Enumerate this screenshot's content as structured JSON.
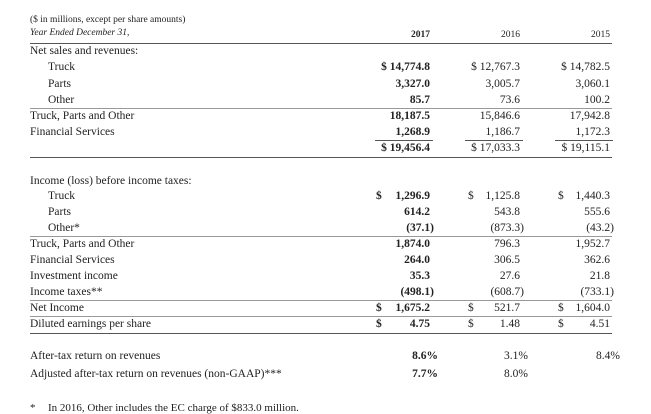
{
  "header": {
    "units_note": "($ in millions, except per share amounts)",
    "period_label": "Year Ended December 31,",
    "years": [
      "2017",
      "2016",
      "2015"
    ]
  },
  "net_sales": {
    "heading": "Net sales and revenues:",
    "rows": [
      {
        "label": "Truck",
        "v2017": "$ 14,774.8",
        "v2016": "$ 12,767.3",
        "v2015": "$ 14,782.5"
      },
      {
        "label": "Parts",
        "v2017": "3,327.0",
        "v2016": "3,005.7",
        "v2015": "3,060.1"
      },
      {
        "label": "Other",
        "v2017": "85.7",
        "v2016": "73.6",
        "v2015": "100.2"
      },
      {
        "label": "Truck, Parts and Other",
        "v2017": "18,187.5",
        "v2016": "15,846.6",
        "v2015": "17,942.8"
      },
      {
        "label": "Financial Services",
        "v2017": "1,268.9",
        "v2016": "1,186.7",
        "v2015": "1,172.3"
      },
      {
        "label": "",
        "v2017": "$ 19,456.4",
        "v2016": "$ 17,033.3",
        "v2015": "$ 19,115.1"
      }
    ]
  },
  "income": {
    "heading": "Income (loss) before income taxes:",
    "rows": [
      {
        "label": "Truck",
        "d2017": "$",
        "v2017": "1,296.9",
        "d2016": "$",
        "v2016": "1,125.8",
        "d2015": "$",
        "v2015": "1,440.3"
      },
      {
        "label": "Parts",
        "d2017": "",
        "v2017": "614.2",
        "d2016": "",
        "v2016": "543.8",
        "d2015": "",
        "v2015": "555.6"
      },
      {
        "label": "Other*",
        "d2017": "",
        "v2017": "(37.1)",
        "d2016": "",
        "v2016": "(873.3)",
        "d2015": "",
        "v2015": "(43.2)"
      },
      {
        "label": "Truck, Parts and Other",
        "d2017": "",
        "v2017": "1,874.0",
        "d2016": "",
        "v2016": "796.3",
        "d2015": "",
        "v2015": "1,952.7"
      },
      {
        "label": "Financial Services",
        "d2017": "",
        "v2017": "264.0",
        "d2016": "",
        "v2016": "306.5",
        "d2015": "",
        "v2015": "362.6"
      },
      {
        "label": "Investment income",
        "d2017": "",
        "v2017": "35.3",
        "d2016": "",
        "v2016": "27.6",
        "d2015": "",
        "v2015": "21.8"
      },
      {
        "label": "Income taxes**",
        "d2017": "",
        "v2017": "(498.1)",
        "d2016": "",
        "v2016": "(608.7)",
        "d2015": "",
        "v2015": "(733.1)"
      },
      {
        "label": "Net Income",
        "d2017": "$",
        "v2017": "1,675.2",
        "d2016": "$",
        "v2016": "521.7",
        "d2015": "$",
        "v2015": "1,604.0"
      },
      {
        "label": "Diluted earnings per share",
        "d2017": "$",
        "v2017": "4.75",
        "d2016": "$",
        "v2016": "1.48",
        "d2015": "$",
        "v2015": "4.51"
      }
    ]
  },
  "returns": {
    "rows": [
      {
        "label": "After-tax return on revenues",
        "v2017": "8.6%",
        "v2016": "3.1%",
        "v2015": "8.4%"
      },
      {
        "label": "Adjusted after-tax return on revenues (non-GAAP)***",
        "v2017": "7.7%",
        "v2016": "8.0%",
        "v2015": ""
      }
    ]
  },
  "footnote": {
    "marker": "*",
    "text": "In 2016, Other includes the EC charge of $833.0 million."
  }
}
